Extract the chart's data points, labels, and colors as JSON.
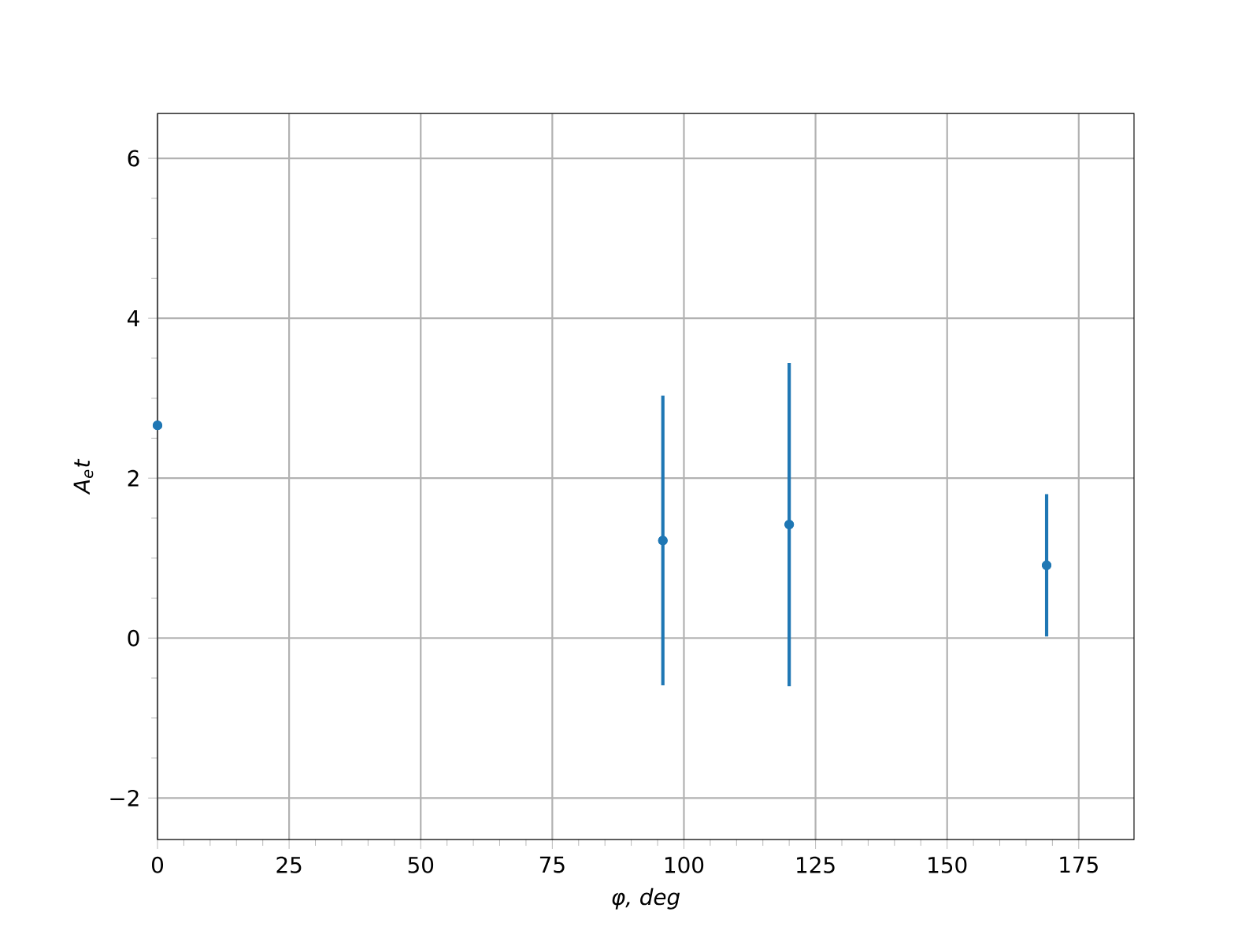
{
  "chart_data": {
    "type": "scatter",
    "xlabel": "φ, deg",
    "ylabel": "A$_{e}$t",
    "x": [
      0,
      96,
      120,
      168.9
    ],
    "values": [
      2.66,
      1.22,
      1.42,
      0.91
    ],
    "errors": [
      null,
      1.81,
      2.02,
      0.89
    ],
    "color": "#1f77b4",
    "marker": "circle",
    "xlim": [
      0,
      185.5
    ],
    "ylim": [
      -2.52,
      6.56
    ],
    "xticks": [
      0,
      25,
      50,
      75,
      100,
      125,
      150,
      175
    ],
    "yticks": [
      {
        "value": -2,
        "label": "−2"
      },
      0,
      2,
      4,
      6
    ],
    "grid": true
  }
}
